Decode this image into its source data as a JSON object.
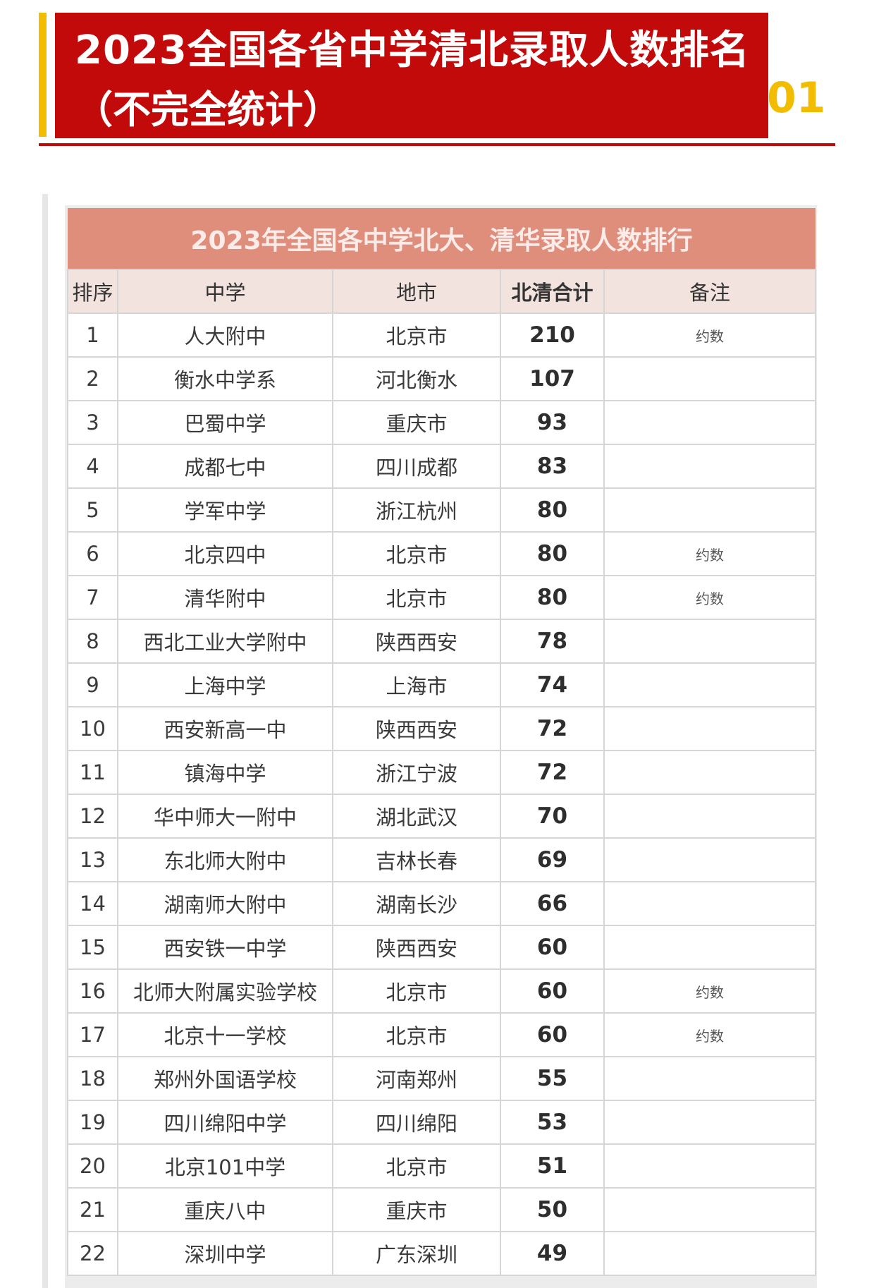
{
  "header": {
    "title_line1": "2023全国各省中学清北录取人数排名",
    "title_line2": "（不完全统计）",
    "section_number": "01",
    "colors": {
      "red": "#c20a0a",
      "gold": "#f2bd00"
    }
  },
  "table": {
    "title": "2023年全国各中学北大、清华录取人数排行",
    "columns": [
      "排序",
      "中学",
      "地市",
      "北清合计",
      "备注"
    ],
    "rows": [
      {
        "rank": "1",
        "school": "人大附中",
        "city": "北京市",
        "total": "210",
        "note": "约数"
      },
      {
        "rank": "2",
        "school": "衡水中学系",
        "city": "河北衡水",
        "total": "107",
        "note": ""
      },
      {
        "rank": "3",
        "school": "巴蜀中学",
        "city": "重庆市",
        "total": "93",
        "note": ""
      },
      {
        "rank": "4",
        "school": "成都七中",
        "city": "四川成都",
        "total": "83",
        "note": ""
      },
      {
        "rank": "5",
        "school": "学军中学",
        "city": "浙江杭州",
        "total": "80",
        "note": ""
      },
      {
        "rank": "6",
        "school": "北京四中",
        "city": "北京市",
        "total": "80",
        "note": "约数"
      },
      {
        "rank": "7",
        "school": "清华附中",
        "city": "北京市",
        "total": "80",
        "note": "约数"
      },
      {
        "rank": "8",
        "school": "西北工业大学附中",
        "city": "陕西西安",
        "total": "78",
        "note": ""
      },
      {
        "rank": "9",
        "school": "上海中学",
        "city": "上海市",
        "total": "74",
        "note": ""
      },
      {
        "rank": "10",
        "school": "西安新高一中",
        "city": "陕西西安",
        "total": "72",
        "note": ""
      },
      {
        "rank": "11",
        "school": "镇海中学",
        "city": "浙江宁波",
        "total": "72",
        "note": ""
      },
      {
        "rank": "12",
        "school": "华中师大一附中",
        "city": "湖北武汉",
        "total": "70",
        "note": ""
      },
      {
        "rank": "13",
        "school": "东北师大附中",
        "city": "吉林长春",
        "total": "69",
        "note": ""
      },
      {
        "rank": "14",
        "school": "湖南师大附中",
        "city": "湖南长沙",
        "total": "66",
        "note": ""
      },
      {
        "rank": "15",
        "school": "西安铁一中学",
        "city": "陕西西安",
        "total": "60",
        "note": ""
      },
      {
        "rank": "16",
        "school": "北师大附属实验学校",
        "city": "北京市",
        "total": "60",
        "note": "约数"
      },
      {
        "rank": "17",
        "school": "北京十一学校",
        "city": "北京市",
        "total": "60",
        "note": "约数"
      },
      {
        "rank": "18",
        "school": "郑州外国语学校",
        "city": "河南郑州",
        "total": "55",
        "note": ""
      },
      {
        "rank": "19",
        "school": "四川绵阳中学",
        "city": "四川绵阳",
        "total": "53",
        "note": ""
      },
      {
        "rank": "20",
        "school": "北京101中学",
        "city": "北京市",
        "total": "51",
        "note": ""
      },
      {
        "rank": "21",
        "school": "重庆八中",
        "city": "重庆市",
        "total": "50",
        "note": ""
      },
      {
        "rank": "22",
        "school": "深圳中学",
        "city": "广东深圳",
        "total": "49",
        "note": ""
      }
    ]
  }
}
